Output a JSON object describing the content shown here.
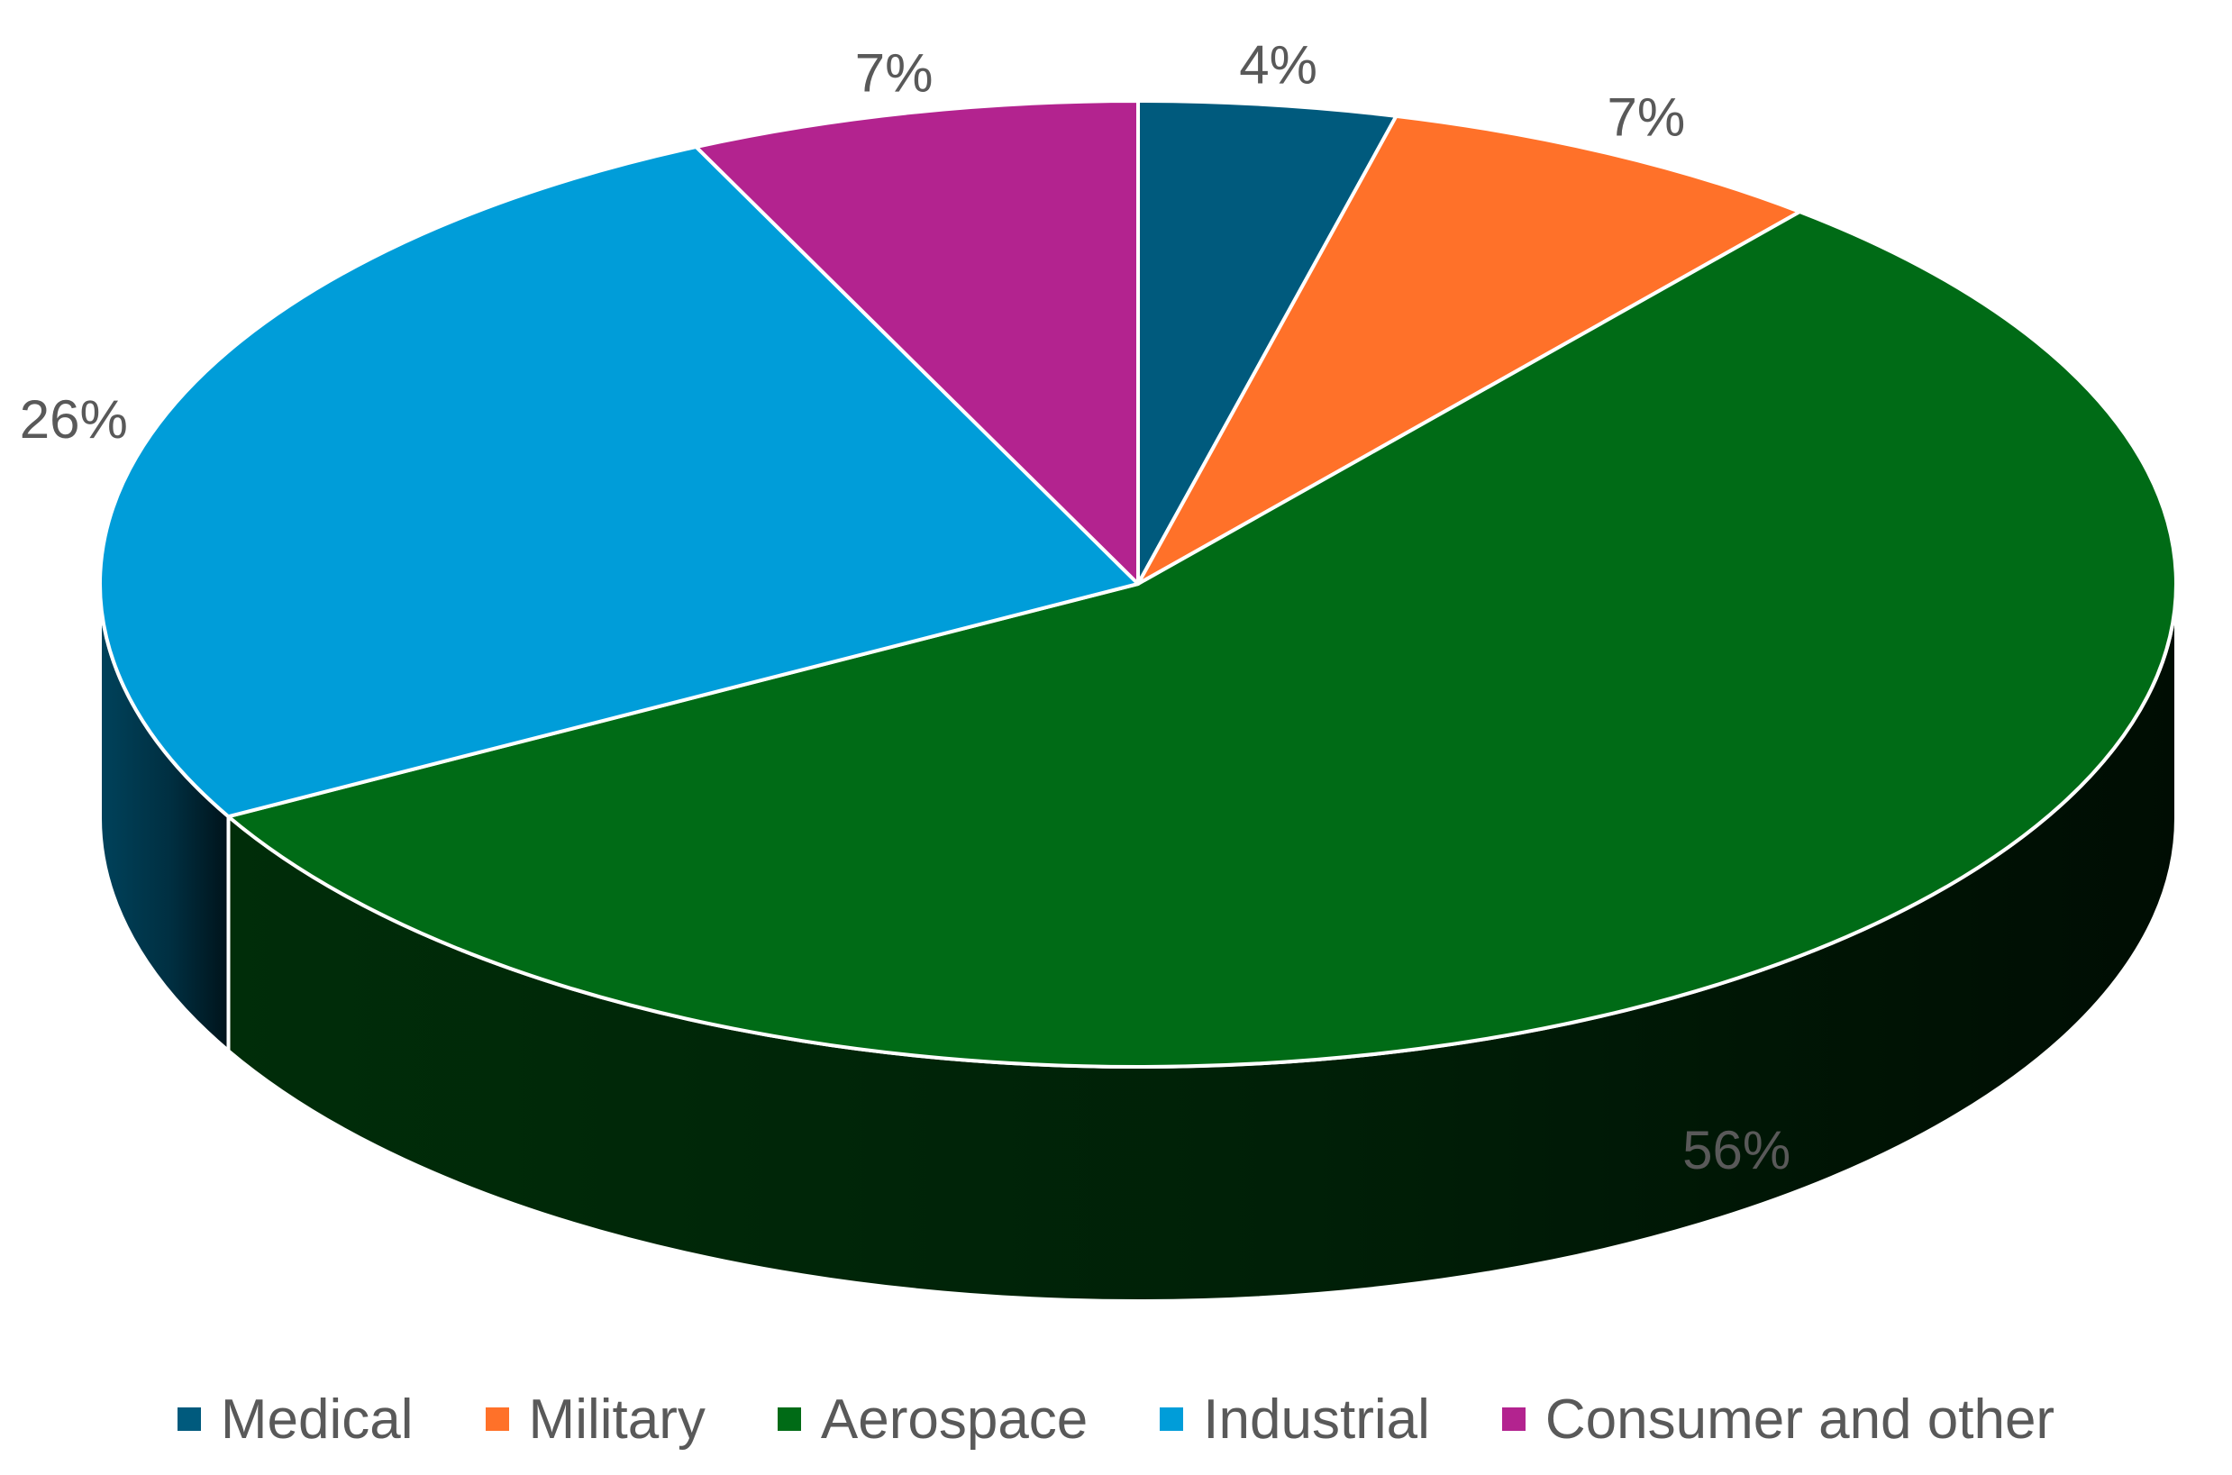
{
  "chart_data": {
    "type": "pie",
    "style": "3d",
    "categories": [
      "Medical",
      "Military",
      "Aerospace",
      "Industrial",
      "Consumer and other"
    ],
    "values": [
      4,
      7,
      56,
      26,
      7
    ],
    "data_labels": [
      "4%",
      "7%",
      "56%",
      "26%",
      "7%"
    ],
    "colors": [
      "#005A7D",
      "#FF7129",
      "#006B16",
      "#009DD9",
      "#B3238F"
    ],
    "title": "",
    "legend_position": "bottom"
  }
}
